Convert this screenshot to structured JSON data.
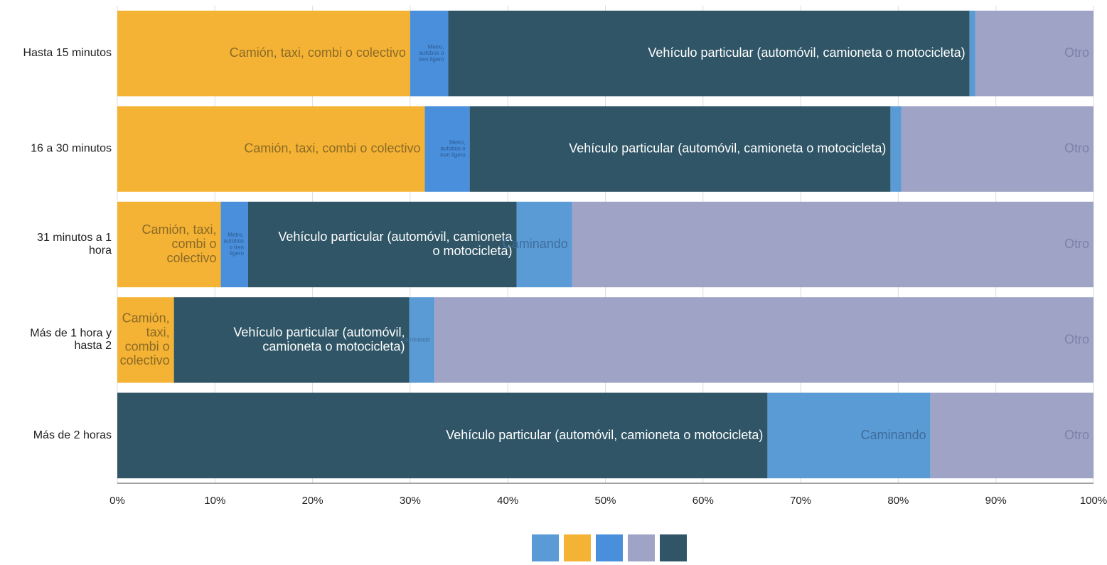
{
  "chart_data": {
    "type": "stacked_barh",
    "categories": [
      "Hasta 15 minutos",
      "16 a 30 minutos",
      "31 minutos a 1 hora",
      "Más de 1 hora y hasta 2",
      "Más de 2 horas"
    ],
    "series": [
      {
        "name": "Camión, taxi, combi o colectivo",
        "color": "#f5b335",
        "label_color": "#8a6a26",
        "values": [
          30.0,
          31.5,
          10.6,
          5.8,
          0
        ]
      },
      {
        "name": "Metro, autobús o tren ligero",
        "color": "#4a8fdb",
        "label_color": "#2c5a94",
        "values": [
          3.9,
          4.6,
          2.8,
          0,
          0
        ]
      },
      {
        "name": "Vehículo particular (automóvil, camioneta o motocicleta)",
        "color": "#2f5566",
        "label_color": "#ffffff",
        "values": [
          53.4,
          43.1,
          27.5,
          24.1,
          66.6
        ]
      },
      {
        "name": "Caminando",
        "color": "#5b9bd5",
        "label_color": "#3f6d9c",
        "values": [
          0.6,
          1.1,
          5.7,
          2.6,
          16.7
        ]
      },
      {
        "name": "Otro",
        "color": "#9fa3c6",
        "label_color": "#7d81a8",
        "values": [
          12.1,
          19.7,
          53.4,
          67.5,
          16.7
        ]
      }
    ],
    "legend_order": [
      3,
      0,
      1,
      4,
      2
    ],
    "xlim": [
      0,
      100
    ],
    "xticks": [
      {
        "value": 0,
        "label": "0%"
      },
      {
        "value": 10,
        "label": "10%"
      },
      {
        "value": 20,
        "label": "20%"
      },
      {
        "value": 30,
        "label": "30%"
      },
      {
        "value": 40,
        "label": "40%"
      },
      {
        "value": 50,
        "label": "50%"
      },
      {
        "value": 60,
        "label": "60%"
      },
      {
        "value": 70,
        "label": "70%"
      },
      {
        "value": 80,
        "label": "80%"
      },
      {
        "value": 90,
        "label": "90%"
      },
      {
        "value": 100,
        "label": "100%"
      }
    ],
    "grid": true
  }
}
